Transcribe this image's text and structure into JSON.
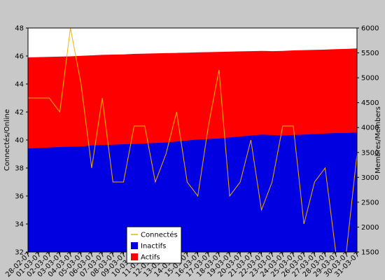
{
  "chart_data": {
    "type": "area",
    "categories": [
      "28-02-07",
      "01-03-07",
      "02-03-07",
      "03-03-07",
      "04-03-07",
      "05-03-07",
      "06-03-07",
      "07-03-07",
      "08-03-07",
      "09-03-07",
      "10-03-07",
      "11-03-07",
      "12-03-07",
      "13-03-07",
      "14-03-07",
      "15-03-07",
      "16-03-07",
      "17-03-07",
      "18-03-07",
      "19-03-07",
      "20-03-07",
      "21-03-07",
      "22-03-07",
      "23-03-07",
      "24-03-07",
      "25-03-07",
      "26-03-07",
      "27-03-07",
      "28-03-07",
      "29-03-07",
      "30-03-07",
      "31-03-07"
    ],
    "ylabel_left": "Connectés/Online",
    "ylabel_right": "Membres/Members",
    "ylim_left": [
      32,
      48
    ],
    "ylim_right": [
      1500,
      6000
    ],
    "yticks_left": [
      "32",
      "34",
      "36",
      "38",
      "40",
      "42",
      "44",
      "46",
      "48"
    ],
    "yticks_right": [
      "1500",
      "2000",
      "2500",
      "3000",
      "3500",
      "4000",
      "4500",
      "5000",
      "5500",
      "6000"
    ],
    "series": [
      {
        "name": "Connectés",
        "axis": "left",
        "style": "line",
        "color": "#f0b400",
        "values": [
          43,
          43,
          43,
          42,
          48,
          44,
          38,
          43,
          37,
          37,
          41,
          41,
          37,
          39,
          42,
          37,
          36,
          41,
          45,
          36,
          37,
          40,
          35,
          37,
          41,
          41,
          34,
          37,
          38,
          32,
          32,
          39
        ]
      },
      {
        "name": "Inactifs",
        "axis": "right",
        "style": "area",
        "color": "#0000e0",
        "values": [
          3580,
          3590,
          3600,
          3610,
          3615,
          3620,
          3640,
          3650,
          3655,
          3665,
          3670,
          3680,
          3690,
          3700,
          3720,
          3740,
          3760,
          3770,
          3780,
          3800,
          3820,
          3840,
          3860,
          3850,
          3840,
          3850,
          3860,
          3870,
          3880,
          3890,
          3890,
          3900
        ]
      },
      {
        "name": "Actifs",
        "axis": "right",
        "style": "area",
        "color": "#ff0000",
        "values": [
          5410,
          5415,
          5420,
          5425,
          5430,
          5440,
          5450,
          5460,
          5465,
          5470,
          5480,
          5485,
          5490,
          5495,
          5500,
          5505,
          5510,
          5515,
          5520,
          5525,
          5530,
          5535,
          5540,
          5535,
          5540,
          5550,
          5555,
          5560,
          5565,
          5575,
          5580,
          5590
        ]
      }
    ],
    "legend": {
      "position": "bottom-center",
      "items": [
        "Connectés",
        "Inactifs",
        "Actifs"
      ]
    },
    "grid": false
  }
}
